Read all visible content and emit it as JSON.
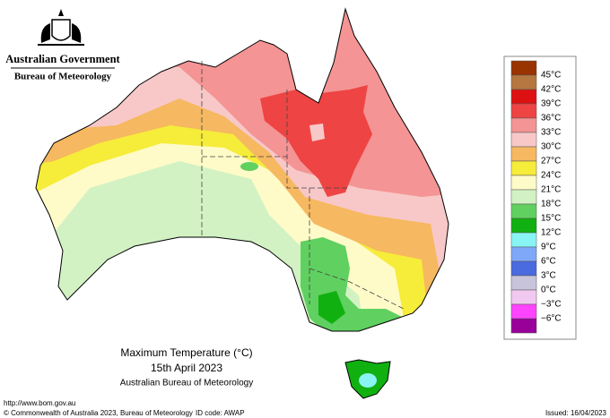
{
  "header": {
    "agency": "Australian Government",
    "bureau": "Bureau of Meteorology"
  },
  "map": {
    "title": "Maximum Temperature (°C)",
    "date": "15th April 2023",
    "source": "Australian Bureau of Meteorology"
  },
  "legend": {
    "labels": [
      "45°C",
      "42°C",
      "39°C",
      "36°C",
      "33°C",
      "30°C",
      "27°C",
      "24°C",
      "21°C",
      "18°C",
      "15°C",
      "12°C",
      "9°C",
      "6°C",
      "3°C",
      "0°C",
      "−3°C",
      "−6°C"
    ],
    "colors": [
      "#993300",
      "#b5773f",
      "#dd1111",
      "#ee4444",
      "#f49494",
      "#f8c8c8",
      "#f6b860",
      "#f6ec3a",
      "#fffbc8",
      "#d2f2c4",
      "#60d060",
      "#10b010",
      "#88f4f4",
      "#80a8f8",
      "#4a6ae0",
      "#c8c4dc",
      "#f0c8f0",
      "#ff44ff",
      "#990099"
    ]
  },
  "footer": {
    "url": "http://www.bom.gov.au",
    "copyright": "© Commonwealth of Australia 2023, Bureau of Meteorology",
    "id_code": "ID code: AWAP",
    "issued": "Issued: 16/04/2023"
  }
}
